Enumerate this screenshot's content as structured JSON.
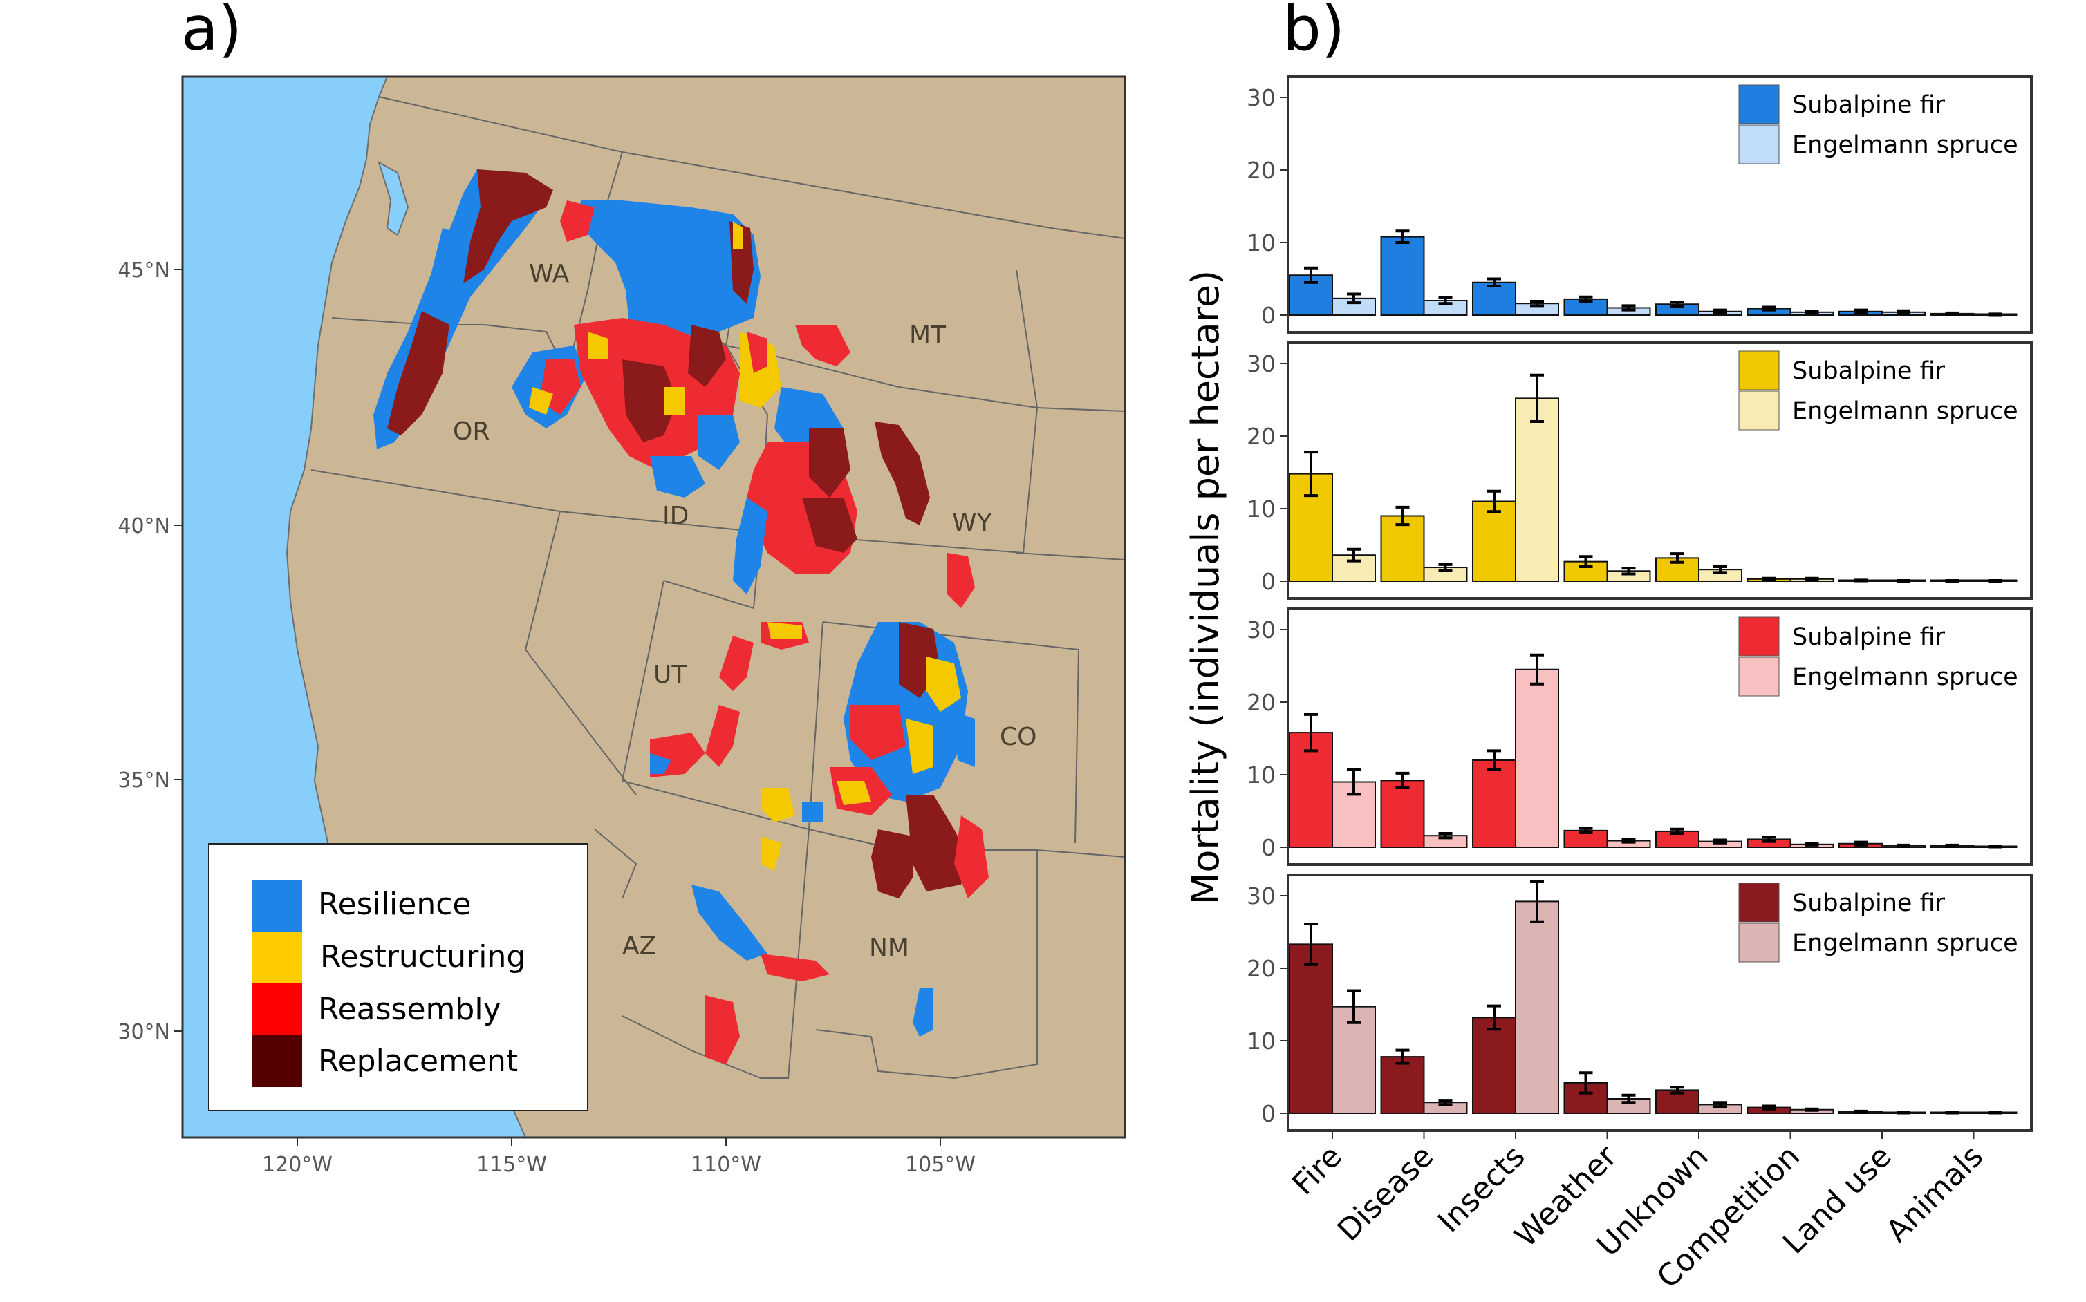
{
  "panel_a": {
    "label": "a)",
    "x_ticks": [
      "120°W",
      "115°W",
      "110°W",
      "105°W"
    ],
    "y_ticks": [
      "45°N",
      "40°N",
      "35°N",
      "30°N"
    ],
    "states": [
      "WA",
      "OR",
      "ID",
      "MT",
      "WY",
      "UT",
      "CO",
      "AZ",
      "NM"
    ],
    "legend": [
      {
        "label": "Resilience",
        "color": "#1f84e8"
      },
      {
        "label": "Restructuring",
        "color": "#ffcc00"
      },
      {
        "label": "Reassembly",
        "color": "#ff0000"
      },
      {
        "label": "Replacement",
        "color": "#550000"
      }
    ],
    "colors": {
      "ocean": "#87cefa",
      "land": "#cbb796",
      "resilience": "#1f84e8",
      "restructuring": "#f5c900",
      "reassembly": "#ee2b33",
      "replacement": "#8b1a1a"
    }
  },
  "panel_b": {
    "label": "b)",
    "ylabel": "Mortality (individuals per hectare)"
  },
  "chart_data": {
    "type": "bar",
    "categories": [
      "Fire",
      "Disease",
      "Insects",
      "Weather",
      "Unknown",
      "Competition",
      "Land use",
      "Animals"
    ],
    "ylim": [
      0,
      33
    ],
    "yticks": [
      0,
      10,
      20,
      30
    ],
    "legend_position": "top-right",
    "panels": [
      {
        "fir_color": "#1e7fe0",
        "spruce_color": "#c0dcf8",
        "series": [
          {
            "name": "Subalpine fir",
            "values": [
              5.5,
              10.8,
              4.5,
              2.2,
              1.5,
              0.9,
              0.5,
              0.2
            ],
            "errors": [
              1.0,
              0.8,
              0.5,
              0.3,
              0.3,
              0.2,
              0.2,
              0.1
            ]
          },
          {
            "name": "Engelmann spruce",
            "values": [
              2.3,
              2.0,
              1.6,
              1.0,
              0.5,
              0.4,
              0.4,
              0.1
            ],
            "errors": [
              0.6,
              0.4,
              0.3,
              0.3,
              0.2,
              0.1,
              0.2,
              0.05
            ]
          }
        ]
      },
      {
        "fir_color": "#f0c800",
        "spruce_color": "#f8ecb4",
        "series": [
          {
            "name": "Subalpine fir",
            "values": [
              14.8,
              9.0,
              11.0,
              2.7,
              3.2,
              0.3,
              0.1,
              0.05
            ],
            "errors": [
              3.0,
              1.2,
              1.4,
              0.7,
              0.6,
              0.1,
              0.05,
              0.05
            ]
          },
          {
            "name": "Engelmann spruce",
            "values": [
              3.6,
              1.9,
              25.2,
              1.4,
              1.6,
              0.3,
              0.05,
              0.05
            ],
            "errors": [
              0.8,
              0.4,
              3.2,
              0.4,
              0.4,
              0.1,
              0.05,
              0.05
            ]
          }
        ]
      },
      {
        "fir_color": "#ee2b33",
        "spruce_color": "#f8c0c0",
        "series": [
          {
            "name": "Subalpine fir",
            "values": [
              15.8,
              9.2,
              12.0,
              2.3,
              2.2,
              1.1,
              0.5,
              0.2
            ],
            "errors": [
              2.5,
              1.0,
              1.3,
              0.3,
              0.3,
              0.3,
              0.2,
              0.1
            ]
          },
          {
            "name": "Engelmann spruce",
            "values": [
              9.0,
              1.6,
              24.5,
              0.9,
              0.8,
              0.4,
              0.2,
              0.1
            ],
            "errors": [
              1.7,
              0.3,
              2.0,
              0.2,
              0.2,
              0.1,
              0.1,
              0.05
            ]
          }
        ]
      },
      {
        "fir_color": "#8b1a1e",
        "spruce_color": "#dcb4b4",
        "series": [
          {
            "name": "Subalpine fir",
            "values": [
              23.3,
              7.8,
              13.2,
              4.2,
              3.2,
              0.8,
              0.2,
              0.1
            ],
            "errors": [
              2.8,
              0.9,
              1.6,
              1.4,
              0.4,
              0.2,
              0.1,
              0.05
            ]
          },
          {
            "name": "Engelmann spruce",
            "values": [
              14.7,
              1.5,
              29.2,
              2.0,
              1.2,
              0.5,
              0.1,
              0.1
            ],
            "errors": [
              2.2,
              0.3,
              2.8,
              0.5,
              0.3,
              0.1,
              0.05,
              0.05
            ]
          }
        ]
      }
    ]
  }
}
